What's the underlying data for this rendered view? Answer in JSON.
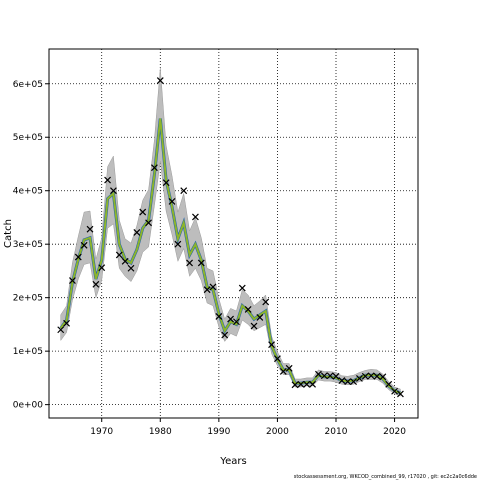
{
  "chart_data": {
    "type": "line",
    "xlabel": "Years",
    "ylabel": "Catch",
    "xlim": [
      1961,
      2024
    ],
    "ylim": [
      -25000,
      665000
    ],
    "x_ticks": [
      1970,
      1980,
      1990,
      2000,
      2010,
      2020
    ],
    "y_ticks": [
      0,
      100000,
      200000,
      300000,
      400000,
      500000,
      600000
    ],
    "y_tick_labels": [
      "0e+00",
      "1e+05",
      "2e+05",
      "3e+05",
      "4e+05",
      "5e+05",
      "6e+05"
    ],
    "grid": true,
    "grid_style": "dotted",
    "colors": {
      "band": "#bdbdbd",
      "band_edge": "#9a9a9a",
      "estimate_line": "#1f5fb0",
      "estimate_overlay": "#8db52a",
      "observed_marker": "#000000"
    },
    "years": [
      1963,
      1964,
      1965,
      1966,
      1967,
      1968,
      1969,
      1970,
      1971,
      1972,
      1973,
      1974,
      1975,
      1976,
      1977,
      1978,
      1979,
      1980,
      1981,
      1982,
      1983,
      1984,
      1985,
      1986,
      1987,
      1988,
      1989,
      1990,
      1991,
      1992,
      1993,
      1994,
      1995,
      1996,
      1997,
      1998,
      1999,
      2000,
      2001,
      2002,
      2003,
      2004,
      2005,
      2006,
      2007,
      2008,
      2009,
      2010,
      2011,
      2012,
      2013,
      2014,
      2015,
      2016,
      2017,
      2018,
      2019,
      2020,
      2021
    ],
    "estimate": [
      143000,
      158000,
      228000,
      272000,
      308000,
      312000,
      235000,
      270000,
      385000,
      395000,
      300000,
      272000,
      265000,
      290000,
      330000,
      345000,
      430000,
      535000,
      420000,
      370000,
      310000,
      340000,
      280000,
      300000,
      270000,
      220000,
      215000,
      170000,
      138000,
      155000,
      150000,
      185000,
      175000,
      160000,
      168000,
      175000,
      110000,
      85000,
      65000,
      65000,
      40000,
      40000,
      42000,
      42000,
      55000,
      52000,
      52000,
      50000,
      45000,
      44000,
      45000,
      50000,
      55000,
      55000,
      55000,
      48000,
      35000,
      26000,
      22000
    ],
    "lower": [
      120000,
      135000,
      195000,
      235000,
      262000,
      265000,
      200000,
      232000,
      330000,
      338000,
      255000,
      240000,
      230000,
      250000,
      285000,
      295000,
      372000,
      455000,
      362000,
      318000,
      268000,
      292000,
      240000,
      255000,
      232000,
      190000,
      185000,
      145000,
      118000,
      133000,
      128000,
      158000,
      150000,
      138000,
      144000,
      150000,
      95000,
      73000,
      56000,
      56000,
      33000,
      33000,
      35000,
      35000,
      46000,
      44000,
      44000,
      42000,
      38000,
      37000,
      38000,
      43000,
      47000,
      47000,
      47000,
      40000,
      28000,
      20000,
      16000
    ],
    "upper": [
      168000,
      185000,
      265000,
      315000,
      360000,
      362000,
      272000,
      312000,
      445000,
      465000,
      345000,
      310000,
      302000,
      335000,
      382000,
      402000,
      495000,
      630000,
      485000,
      428000,
      360000,
      395000,
      325000,
      350000,
      312000,
      255000,
      250000,
      198000,
      160000,
      180000,
      175000,
      215000,
      205000,
      185000,
      194000,
      205000,
      128000,
      99000,
      77000,
      77000,
      48000,
      48000,
      50000,
      50000,
      65000,
      62000,
      62000,
      60000,
      54000,
      53000,
      55000,
      60000,
      64000,
      66000,
      65000,
      57000,
      43000,
      33000,
      29000
    ],
    "observed": [
      140000,
      152000,
      232000,
      276000,
      298000,
      328000,
      225000,
      256000,
      420000,
      400000,
      280000,
      268000,
      255000,
      322000,
      360000,
      340000,
      443000,
      606000,
      415000,
      380000,
      300000,
      400000,
      265000,
      351000,
      265000,
      215000,
      220000,
      165000,
      130000,
      160000,
      155000,
      218000,
      178000,
      147000,
      163000,
      192000,
      112000,
      86000,
      62000,
      68000,
      37000,
      38000,
      38000,
      38000,
      57000,
      54000,
      54000,
      53000,
      45000,
      43000,
      43000,
      49000,
      53000,
      54000,
      53000,
      52000,
      38000,
      25000,
      20000
    ]
  },
  "footnote": "stockassessment.org, WKCOD_combined_99, r17020 , git: ec2c2a0c6dde"
}
